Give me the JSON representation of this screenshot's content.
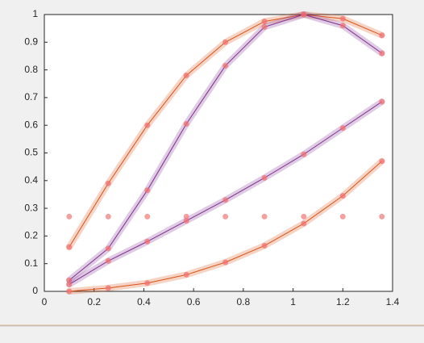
{
  "chart_data": {
    "type": "line",
    "x": [
      0.1,
      0.257,
      0.414,
      0.571,
      0.728,
      0.885,
      1.043,
      1.2,
      1.357
    ],
    "series": [
      {
        "color": "#d95319",
        "highlight": true,
        "values": [
          0.16,
          0.39,
          0.6,
          0.78,
          0.9,
          0.975,
          1.0,
          0.985,
          0.925
        ]
      },
      {
        "color": "#7e2f8e",
        "highlight": true,
        "values": [
          0.04,
          0.155,
          0.365,
          0.605,
          0.815,
          0.955,
          1.0,
          0.96,
          0.86
        ]
      },
      {
        "color": "#7e2f8e",
        "highlight": true,
        "values": [
          0.025,
          0.11,
          0.18,
          0.255,
          0.33,
          0.41,
          0.495,
          0.59,
          0.685
        ]
      },
      {
        "color": "#d95319",
        "highlight": true,
        "values": [
          0.0,
          0.012,
          0.03,
          0.06,
          0.105,
          0.165,
          0.245,
          0.345,
          0.47
        ]
      },
      {
        "color": "#f08080",
        "mode": "markers",
        "values": [
          0.27,
          0.27,
          0.27,
          0.27,
          0.27,
          0.27,
          0.27,
          0.27,
          0.27
        ]
      }
    ],
    "xlim": [
      0,
      1.4
    ],
    "xticks": [
      0,
      0.2,
      0.4,
      0.6,
      0.8,
      1,
      1.2,
      1.4
    ],
    "ylim": [
      0,
      1
    ],
    "yticks": [
      0,
      0.1,
      0.2,
      0.3,
      0.4,
      0.5,
      0.6,
      0.7,
      0.8,
      0.9,
      1
    ]
  }
}
